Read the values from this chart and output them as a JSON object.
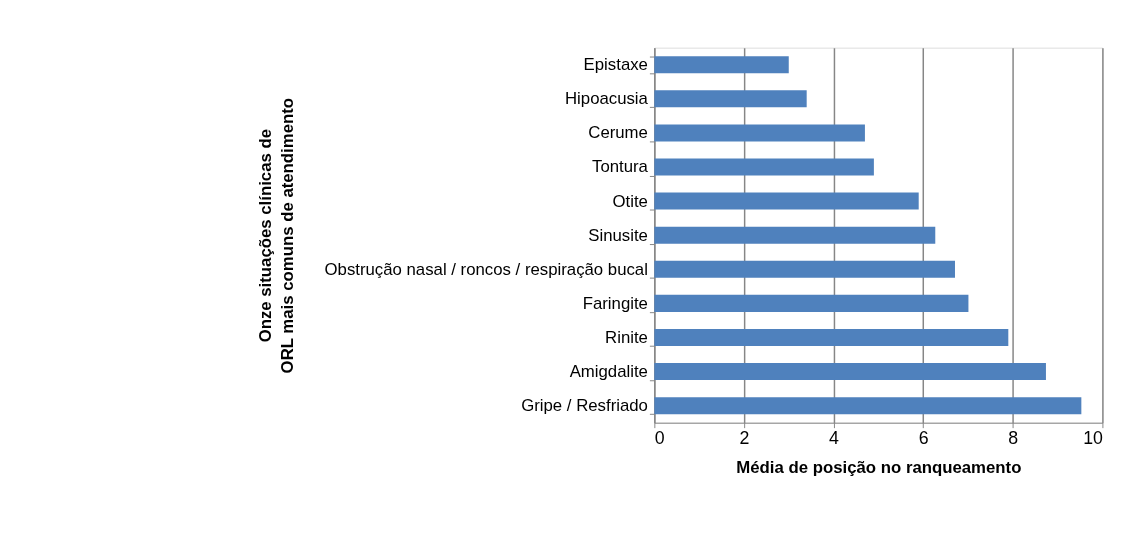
{
  "chart_data": {
    "type": "bar",
    "orientation": "horizontal",
    "xlabel": "Média de posição no ranqueamento",
    "ylabel": "Onze situações clínicas de ORL mais comuns de atendimento",
    "categories": [
      "Epistaxe",
      "Hipoacusia",
      "Cerume",
      "Tontura",
      "Otite",
      "Sinusite",
      "Obstrução nasal / roncos / respiração bucal",
      "Faringite",
      "Rinite",
      "Amigdalite",
      "Gripe / Resfriado"
    ],
    "values": [
      3.0,
      3.4,
      4.7,
      4.9,
      5.9,
      6.27,
      6.71,
      7.01,
      7.9,
      8.74,
      9.53
    ],
    "color": "#4f81bd",
    "xlim": [
      0,
      10
    ],
    "xticks": [
      0,
      2,
      4,
      6,
      8,
      10
    ],
    "grid": "x"
  }
}
